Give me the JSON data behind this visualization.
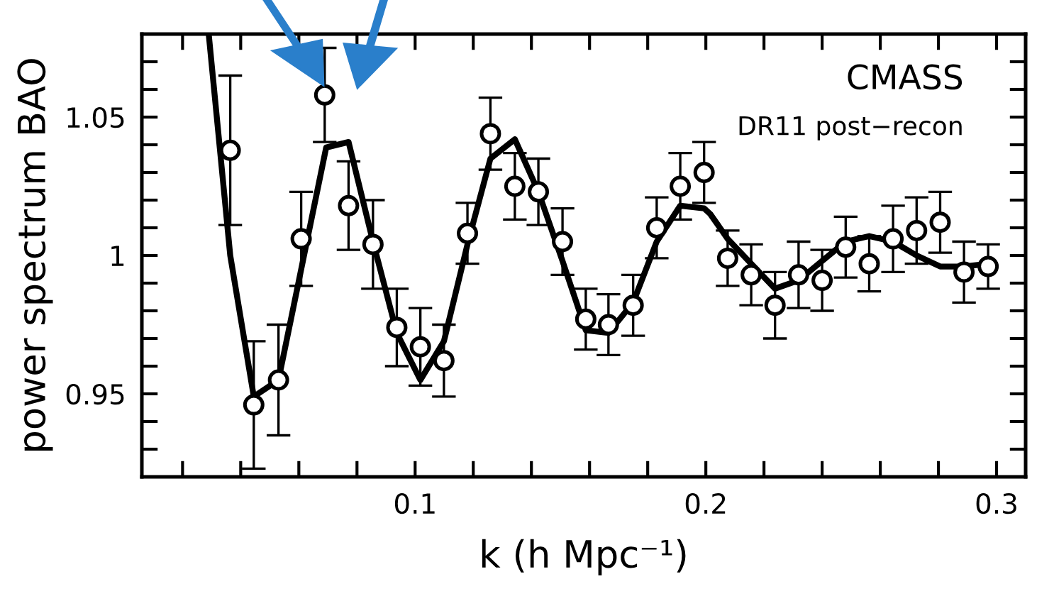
{
  "chart_data": {
    "type": "scatter",
    "xlabel": "k (h Mpc⁻¹)",
    "ylabel": "power spectrum BAO",
    "annotations": [
      "CMASS",
      "DR11 post−recon"
    ],
    "xlim": [
      0.006,
      0.31
    ],
    "ylim": [
      0.92,
      1.08
    ],
    "xticks": [
      {
        "value": 0.02,
        "label": null
      },
      {
        "value": 0.04,
        "label": null
      },
      {
        "value": 0.06,
        "label": null
      },
      {
        "value": 0.08,
        "label": null
      },
      {
        "value": 0.1,
        "label": "0.1"
      },
      {
        "value": 0.12,
        "label": null
      },
      {
        "value": 0.14,
        "label": null
      },
      {
        "value": 0.16,
        "label": null
      },
      {
        "value": 0.18,
        "label": null
      },
      {
        "value": 0.2,
        "label": "0.2"
      },
      {
        "value": 0.22,
        "label": null
      },
      {
        "value": 0.24,
        "label": null
      },
      {
        "value": 0.26,
        "label": null
      },
      {
        "value": 0.28,
        "label": null
      },
      {
        "value": 0.3,
        "label": "0.3"
      }
    ],
    "yticks": [
      {
        "value": 0.93,
        "label": null
      },
      {
        "value": 0.94,
        "label": null
      },
      {
        "value": 0.95,
        "label": "0.95"
      },
      {
        "value": 0.96,
        "label": null
      },
      {
        "value": 0.97,
        "label": null
      },
      {
        "value": 0.98,
        "label": null
      },
      {
        "value": 0.99,
        "label": null
      },
      {
        "value": 1,
        "label": "1"
      },
      {
        "value": 1.01,
        "label": null
      },
      {
        "value": 1.02,
        "label": null
      },
      {
        "value": 1.03,
        "label": null
      },
      {
        "value": 1.04,
        "label": null
      },
      {
        "value": 1.05,
        "label": "1.05"
      },
      {
        "value": 1.06,
        "label": null
      },
      {
        "value": 1.07,
        "label": null
      }
    ],
    "grid": false,
    "legend": false,
    "series": [
      {
        "type": "scatter",
        "color": "#000000",
        "marker": "circle",
        "x": [
          0.0364,
          0.0445,
          0.053,
          0.0608,
          0.0689,
          0.0771,
          0.0855,
          0.0937,
          0.1018,
          0.1099,
          0.118,
          0.1259,
          0.1343,
          0.1424,
          0.1507,
          0.1587,
          0.1665,
          0.175,
          0.1831,
          0.1912,
          0.1994,
          0.2075,
          0.2156,
          0.2238,
          0.2319,
          0.24,
          0.2481,
          0.2562,
          0.2644,
          0.2725,
          0.2806,
          0.2888,
          0.2971
        ],
        "values": [
          1.038,
          0.946,
          0.955,
          1.006,
          1.058,
          1.018,
          1.004,
          0.974,
          0.967,
          0.962,
          1.008,
          1.044,
          1.025,
          1.023,
          1.005,
          0.977,
          0.975,
          0.982,
          1.01,
          1.025,
          1.03,
          0.999,
          0.993,
          0.982,
          0.993,
          0.991,
          1.003,
          0.997,
          1.006,
          1.009,
          1.012,
          0.994,
          0.996
        ],
        "errors": [
          0.027,
          0.023,
          0.02,
          0.017,
          0.017,
          0.016,
          0.016,
          0.014,
          0.014,
          0.013,
          0.011,
          0.013,
          0.012,
          0.012,
          0.012,
          0.011,
          0.011,
          0.011,
          0.011,
          0.012,
          0.011,
          0.01,
          0.011,
          0.012,
          0.012,
          0.011,
          0.011,
          0.01,
          0.012,
          0.012,
          0.011,
          0.011,
          0.008
        ]
      },
      {
        "type": "line",
        "color": "#000000",
        "marker": "none",
        "line_style": "solid",
        "x": [
          0.029,
          0.0364,
          0.0445,
          0.053,
          0.0694,
          0.0771,
          0.0855,
          0.0937,
          0.1018,
          0.1099,
          0.118,
          0.1259,
          0.1343,
          0.1424,
          0.1507,
          0.1587,
          0.1665,
          0.175,
          0.1831,
          0.1912,
          0.1994,
          0.2015,
          0.2075,
          0.2156,
          0.2238,
          0.2319,
          0.24,
          0.2481,
          0.2562,
          0.2644,
          0.2725,
          0.2806,
          0.2888,
          0.2971
        ],
        "values": [
          1.08,
          1.0,
          0.949,
          0.955,
          1.039,
          1.041,
          1.005,
          0.972,
          0.955,
          0.969,
          1.004,
          1.035,
          1.042,
          1.023,
          0.998,
          0.973,
          0.972,
          0.983,
          1.005,
          1.018,
          1.017,
          1.015,
          1.006,
          0.997,
          0.988,
          0.991,
          0.998,
          1.005,
          1.007,
          1.005,
          1.0,
          0.996,
          0.996,
          0.997
        ]
      }
    ]
  }
}
